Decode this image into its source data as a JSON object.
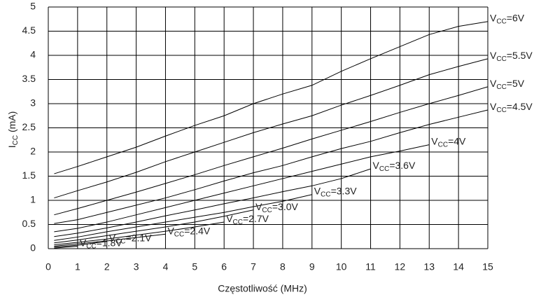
{
  "chart_data": {
    "type": "line",
    "xlabel": "Częstotliwość (MHz)",
    "ylabel": "ICC (mA)",
    "x": [
      0.2,
      1,
      2,
      3,
      4,
      5,
      6,
      7,
      8,
      9,
      10,
      11,
      12,
      13,
      14,
      15
    ],
    "series": [
      {
        "name": "VCC=6V",
        "color": "#000000",
        "values": [
          1.55,
          1.7,
          1.9,
          2.1,
          2.33,
          2.55,
          2.75,
          3.0,
          3.2,
          3.38,
          3.67,
          3.93,
          4.18,
          4.43,
          4.6,
          4.7
        ]
      },
      {
        "name": "VCC=5.5V",
        "color": "#000000",
        "values": [
          1.05,
          1.2,
          1.38,
          1.58,
          1.8,
          2.0,
          2.2,
          2.4,
          2.58,
          2.75,
          2.97,
          3.17,
          3.38,
          3.6,
          3.77,
          3.93
        ]
      },
      {
        "name": "VCC=5V",
        "color": "#000000",
        "values": [
          0.7,
          0.83,
          1.0,
          1.17,
          1.35,
          1.53,
          1.72,
          1.9,
          2.08,
          2.27,
          2.45,
          2.63,
          2.82,
          3.0,
          3.17,
          3.35
        ]
      },
      {
        "name": "VCC=4.5V",
        "color": "#000000",
        "values": [
          0.52,
          0.6,
          0.75,
          0.9,
          1.05,
          1.22,
          1.4,
          1.57,
          1.72,
          1.9,
          2.07,
          2.22,
          2.4,
          2.57,
          2.72,
          2.87
        ]
      },
      {
        "name": "VCC=4V",
        "color": "#000000",
        "values": [
          0.35,
          0.42,
          0.55,
          0.7,
          0.85,
          1.0,
          1.15,
          1.3,
          1.45,
          1.6,
          1.75,
          1.9,
          2.02,
          2.15,
          null,
          null
        ]
      },
      {
        "name": "VCC=3.6V",
        "color": "#000000",
        "values": [
          0.25,
          0.32,
          0.43,
          0.55,
          0.68,
          0.8,
          0.93,
          1.05,
          1.18,
          1.3,
          1.45,
          1.65,
          null,
          null,
          null,
          null
        ]
      },
      {
        "name": "VCC=3.3V",
        "color": "#000000",
        "values": [
          0.17,
          0.24,
          0.35,
          0.45,
          0.55,
          0.65,
          0.75,
          0.87,
          0.98,
          1.12,
          null,
          null,
          null,
          null,
          null,
          null
        ]
      },
      {
        "name": "VCC=3.0V",
        "color": "#000000",
        "values": [
          0.12,
          0.18,
          0.27,
          0.36,
          0.45,
          0.55,
          0.67,
          0.8,
          null,
          null,
          null,
          null,
          null,
          null,
          null,
          null
        ]
      },
      {
        "name": "VCC=2.7V",
        "color": "#000000",
        "values": [
          0.08,
          0.13,
          0.2,
          0.28,
          0.36,
          0.45,
          0.55,
          null,
          null,
          null,
          null,
          null,
          null,
          null,
          null,
          null
        ]
      },
      {
        "name": "VCC=2.4V",
        "color": "#000000",
        "values": [
          0.05,
          0.1,
          0.16,
          0.23,
          0.3,
          null,
          null,
          null,
          null,
          null,
          null,
          null,
          null,
          null,
          null,
          null
        ]
      },
      {
        "name": "VCC=2.1V",
        "color": "#000000",
        "values": [
          0.03,
          0.07,
          0.15,
          null,
          null,
          null,
          null,
          null,
          null,
          null,
          null,
          null,
          null,
          null,
          null,
          null
        ]
      },
      {
        "name": "VCC=1.8V",
        "color": "#000000",
        "values": [
          0.01,
          0.05,
          null,
          null,
          null,
          null,
          null,
          null,
          null,
          null,
          null,
          null,
          null,
          null,
          null,
          null
        ]
      }
    ],
    "xlim": [
      0,
      15
    ],
    "xticks": [
      0,
      1,
      2,
      3,
      4,
      5,
      6,
      7,
      8,
      9,
      10,
      11,
      12,
      13,
      14,
      15
    ],
    "ylim": [
      0,
      5
    ],
    "yticks": [
      0,
      0.5,
      1,
      1.5,
      2,
      2.5,
      3,
      3.5,
      4,
      4.5,
      5
    ],
    "grid": true
  }
}
